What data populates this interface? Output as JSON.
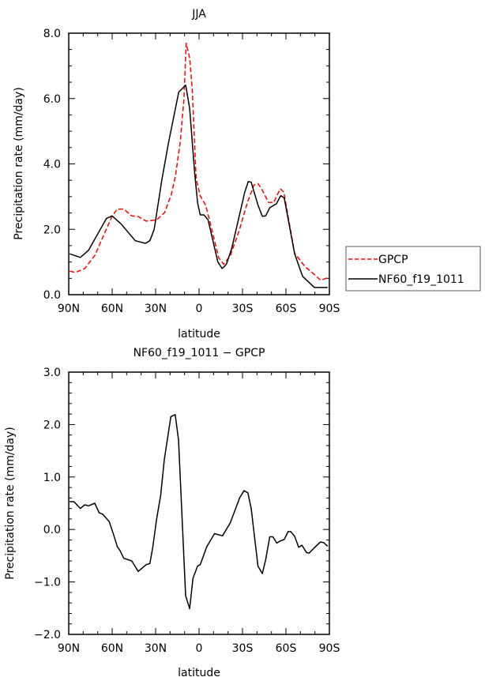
{
  "chart_data": [
    {
      "type": "line",
      "title": "JJA",
      "xlabel": "latitude",
      "ylabel": "Precipitation rate (mm/day)",
      "xlim": [
        90,
        -90
      ],
      "ylim": [
        0,
        8
      ],
      "xticks": [
        90,
        60,
        30,
        0,
        -30,
        -60,
        -90
      ],
      "xtick_labels": [
        "90N",
        "60N",
        "30N",
        "0",
        "30S",
        "60S",
        "90S"
      ],
      "yticks": [
        0,
        2,
        4,
        6,
        8
      ],
      "ytick_labels": [
        "0.0",
        "2.0",
        "4.0",
        "6.0",
        "8.0"
      ],
      "grid": false,
      "legend_placement": "right",
      "series": [
        {
          "name": "GPCP",
          "color": "#ff0000",
          "dash": true,
          "x": [
            89.3,
            85.5,
            79,
            72,
            68,
            60,
            56.4,
            52,
            46.5,
            42,
            36.5,
            29.3,
            23.8,
            19.2,
            16.5,
            13,
            10.5,
            8.9,
            6.5,
            4.7,
            2,
            -0.8,
            -4.5,
            -7.2,
            -13.5,
            -17,
            -21.6,
            -28,
            -33.4,
            -38,
            -40.7,
            -43.4,
            -48,
            -51.6,
            -56,
            -58.5,
            -66,
            -73.3,
            -77,
            -84,
            -88.8
          ],
          "y": [
            0.72,
            0.68,
            0.8,
            1.2,
            1.6,
            2.41,
            2.62,
            2.62,
            2.41,
            2.39,
            2.25,
            2.29,
            2.51,
            3.06,
            3.58,
            4.67,
            5.96,
            7.69,
            7.24,
            6.28,
            3.54,
            3.02,
            2.74,
            2.29,
            1.13,
            0.93,
            1.2,
            2.0,
            2.82,
            3.36,
            3.4,
            3.22,
            2.82,
            2.82,
            3.24,
            3.14,
            1.27,
            0.85,
            0.72,
            0.44,
            0.52
          ]
        },
        {
          "name": "NF60_f19_1011",
          "color": "#000000",
          "dash": false,
          "x": [
            89.3,
            82,
            76.4,
            64,
            60,
            54,
            44,
            37,
            34,
            31,
            25.6,
            21,
            14,
            9.2,
            6.5,
            3,
            1,
            -0.8,
            -3.4,
            -6.2,
            -13,
            -16,
            -18.9,
            -22.5,
            -31.6,
            -34,
            -36,
            -40.7,
            -43.7,
            -46,
            -48.8,
            -53.4,
            -56.4,
            -58.8,
            -66,
            -71.5,
            -79.7,
            -88.8
          ],
          "y": [
            1.25,
            1.14,
            1.35,
            2.33,
            2.41,
            2.17,
            1.65,
            1.57,
            1.65,
            2.0,
            3.54,
            4.67,
            6.2,
            6.41,
            5.7,
            3.7,
            2.8,
            2.44,
            2.44,
            2.29,
            1.0,
            0.8,
            0.93,
            1.41,
            3.14,
            3.46,
            3.44,
            2.74,
            2.4,
            2.41,
            2.66,
            2.78,
            3.03,
            2.96,
            1.25,
            0.56,
            0.22,
            0.22
          ]
        }
      ]
    },
    {
      "type": "line",
      "title": "NF60_f19_1011 − GPCP",
      "xlabel": "latitude",
      "ylabel": "Precipitation rate (mm/day)",
      "xlim": [
        90,
        -90
      ],
      "ylim": [
        -2,
        3
      ],
      "xticks": [
        90,
        60,
        30,
        0,
        -30,
        -60,
        -90
      ],
      "xtick_labels": [
        "90N",
        "60N",
        "30N",
        "0",
        "30S",
        "60S",
        "90S"
      ],
      "yticks": [
        -2,
        -1,
        0,
        1,
        2,
        3
      ],
      "ytick_labels": [
        "−2.0",
        "−1.0",
        "0.0",
        "1.0",
        "2.0",
        "3.0"
      ],
      "grid": false,
      "series": [
        {
          "name": "NF60_f19_1011 - GPCP",
          "color": "#000000",
          "dash": false,
          "x": [
            89.3,
            86.4,
            82,
            79,
            76.4,
            72,
            69,
            66.5,
            62,
            59,
            56.4,
            54.6,
            52,
            46.5,
            42,
            36.5,
            34,
            32,
            29.3,
            26.5,
            24,
            19.5,
            16.5,
            14.2,
            9.3,
            6.5,
            4.2,
            1.1,
            -0.8,
            -5.3,
            -10.7,
            -16.2,
            -21.6,
            -28,
            -31,
            -33.7,
            -36,
            -40.7,
            -43.7,
            -46,
            -48.8,
            -51,
            -53.7,
            -56,
            -58.8,
            -61.5,
            -63.3,
            -66,
            -68.8,
            -71,
            -74.2,
            -76,
            -79.6,
            -83.8,
            -86,
            -88.8
          ],
          "y": [
            0.53,
            0.53,
            0.4,
            0.47,
            0.45,
            0.5,
            0.32,
            0.29,
            0.15,
            -0.1,
            -0.33,
            -0.4,
            -0.55,
            -0.6,
            -0.8,
            -0.67,
            -0.65,
            -0.35,
            0.2,
            0.65,
            1.33,
            2.15,
            2.19,
            1.71,
            -1.26,
            -1.51,
            -0.93,
            -0.7,
            -0.67,
            -0.33,
            -0.08,
            -0.12,
            0.13,
            0.6,
            0.74,
            0.7,
            0.4,
            -0.7,
            -0.84,
            -0.58,
            -0.14,
            -0.14,
            -0.26,
            -0.22,
            -0.19,
            -0.04,
            -0.04,
            -0.13,
            -0.34,
            -0.3,
            -0.44,
            -0.45,
            -0.35,
            -0.24,
            -0.25,
            -0.32
          ]
        }
      ]
    }
  ]
}
